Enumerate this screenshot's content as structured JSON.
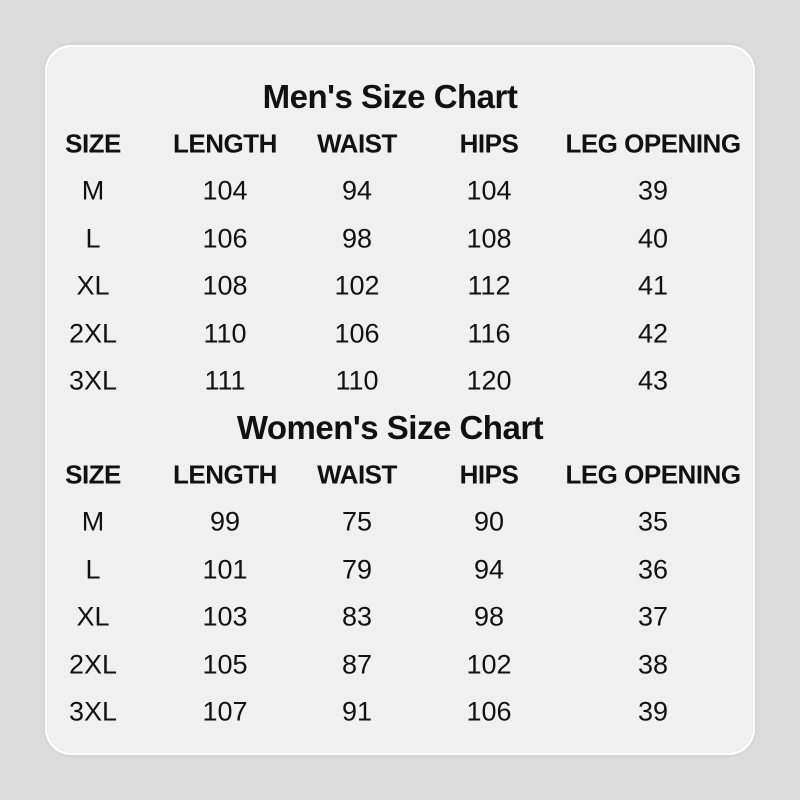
{
  "colors": {
    "background": "#dcdcdc",
    "card": "#f0f0f0",
    "text": "#111111"
  },
  "tables": [
    {
      "title": "Men's Size Chart",
      "headers": [
        "SIZE",
        "LENGTH",
        "WAIST",
        "HIPS",
        "LEG OPENING"
      ],
      "rows": [
        [
          "M",
          "104",
          "94",
          "104",
          "39"
        ],
        [
          "L",
          "106",
          "98",
          "108",
          "40"
        ],
        [
          "XL",
          "108",
          "102",
          "112",
          "41"
        ],
        [
          "2XL",
          "110",
          "106",
          "116",
          "42"
        ],
        [
          "3XL",
          "111",
          "110",
          "120",
          "43"
        ]
      ]
    },
    {
      "title": "Women's Size Chart",
      "headers": [
        "SIZE",
        "LENGTH",
        "WAIST",
        "HIPS",
        "LEG OPENING"
      ],
      "rows": [
        [
          "M",
          "99",
          "75",
          "90",
          "35"
        ],
        [
          "L",
          "101",
          "79",
          "94",
          "36"
        ],
        [
          "XL",
          "103",
          "83",
          "98",
          "37"
        ],
        [
          "2XL",
          "105",
          "87",
          "102",
          "38"
        ],
        [
          "3XL",
          "107",
          "91",
          "106",
          "39"
        ]
      ]
    }
  ]
}
